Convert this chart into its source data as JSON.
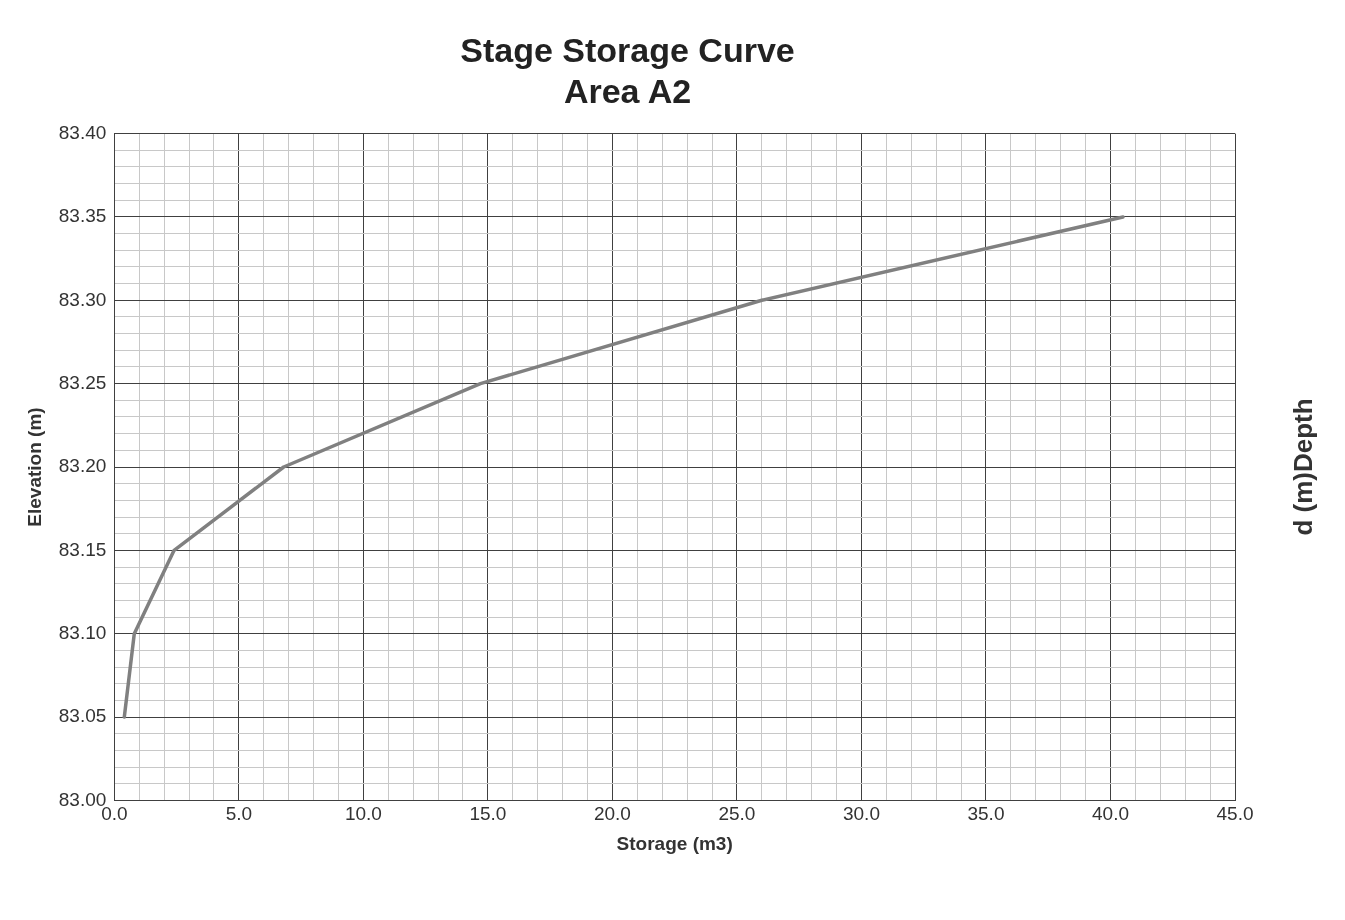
{
  "chart_data": {
    "type": "line",
    "title": [
      "Stage Storage Curve",
      "Area A2"
    ],
    "xlabel": "Storage (m3)",
    "ylabel": "Elevation (m)",
    "y2label": "d (m)Depth",
    "series": [
      {
        "color": "#808080",
        "x": [
          0.4,
          0.8,
          2.4,
          6.8,
          14.7,
          26.0,
          40.5
        ],
        "values": [
          83.05,
          83.1,
          83.15,
          83.2,
          83.25,
          83.3,
          83.35
        ]
      }
    ],
    "xlim": [
      0,
      45
    ],
    "ylim": [
      83.0,
      83.4
    ],
    "xticks": [
      {
        "value": 0,
        "label": "0.0"
      },
      {
        "value": 1,
        "label": null
      },
      {
        "value": 2,
        "label": null
      },
      {
        "value": 3,
        "label": null
      },
      {
        "value": 4,
        "label": null
      },
      {
        "value": 5,
        "label": "5.0"
      },
      {
        "value": 6,
        "label": null
      },
      {
        "value": 7,
        "label": null
      },
      {
        "value": 8,
        "label": null
      },
      {
        "value": 9,
        "label": null
      },
      {
        "value": 10,
        "label": "10.0"
      },
      {
        "value": 11,
        "label": null
      },
      {
        "value": 12,
        "label": null
      },
      {
        "value": 13,
        "label": null
      },
      {
        "value": 14,
        "label": null
      },
      {
        "value": 15,
        "label": "15.0"
      },
      {
        "value": 16,
        "label": null
      },
      {
        "value": 17,
        "label": null
      },
      {
        "value": 18,
        "label": null
      },
      {
        "value": 19,
        "label": null
      },
      {
        "value": 20,
        "label": "20.0"
      },
      {
        "value": 21,
        "label": null
      },
      {
        "value": 22,
        "label": null
      },
      {
        "value": 23,
        "label": null
      },
      {
        "value": 24,
        "label": null
      },
      {
        "value": 25,
        "label": "25.0"
      },
      {
        "value": 26,
        "label": null
      },
      {
        "value": 27,
        "label": null
      },
      {
        "value": 28,
        "label": null
      },
      {
        "value": 29,
        "label": null
      },
      {
        "value": 30,
        "label": "30.0"
      },
      {
        "value": 31,
        "label": null
      },
      {
        "value": 32,
        "label": null
      },
      {
        "value": 33,
        "label": null
      },
      {
        "value": 34,
        "label": null
      },
      {
        "value": 35,
        "label": "35.0"
      },
      {
        "value": 36,
        "label": null
      },
      {
        "value": 37,
        "label": null
      },
      {
        "value": 38,
        "label": null
      },
      {
        "value": 39,
        "label": null
      },
      {
        "value": 40,
        "label": "40.0"
      },
      {
        "value": 41,
        "label": null
      },
      {
        "value": 42,
        "label": null
      },
      {
        "value": 43,
        "label": null
      },
      {
        "value": 44,
        "label": null
      },
      {
        "value": 45,
        "label": "45.0"
      }
    ],
    "yticks": [
      {
        "value": 83.0,
        "label": "83.00"
      },
      {
        "value": 83.01,
        "label": null
      },
      {
        "value": 83.02,
        "label": null
      },
      {
        "value": 83.03,
        "label": null
      },
      {
        "value": 83.04,
        "label": null
      },
      {
        "value": 83.05,
        "label": "83.05"
      },
      {
        "value": 83.06,
        "label": null
      },
      {
        "value": 83.07,
        "label": null
      },
      {
        "value": 83.08,
        "label": null
      },
      {
        "value": 83.09,
        "label": null
      },
      {
        "value": 83.1,
        "label": "83.10"
      },
      {
        "value": 83.11,
        "label": null
      },
      {
        "value": 83.12,
        "label": null
      },
      {
        "value": 83.13,
        "label": null
      },
      {
        "value": 83.14,
        "label": null
      },
      {
        "value": 83.15,
        "label": "83.15"
      },
      {
        "value": 83.16,
        "label": null
      },
      {
        "value": 83.17,
        "label": null
      },
      {
        "value": 83.18,
        "label": null
      },
      {
        "value": 83.19,
        "label": null
      },
      {
        "value": 83.2,
        "label": "83.20"
      },
      {
        "value": 83.21,
        "label": null
      },
      {
        "value": 83.22,
        "label": null
      },
      {
        "value": 83.23,
        "label": null
      },
      {
        "value": 83.24,
        "label": null
      },
      {
        "value": 83.25,
        "label": "83.25"
      },
      {
        "value": 83.26,
        "label": null
      },
      {
        "value": 83.27,
        "label": null
      },
      {
        "value": 83.28,
        "label": null
      },
      {
        "value": 83.29,
        "label": null
      },
      {
        "value": 83.3,
        "label": "83.30"
      },
      {
        "value": 83.31,
        "label": null
      },
      {
        "value": 83.32,
        "label": null
      },
      {
        "value": 83.33,
        "label": null
      },
      {
        "value": 83.34,
        "label": null
      },
      {
        "value": 83.35,
        "label": "83.35"
      },
      {
        "value": 83.36,
        "label": null
      },
      {
        "value": 83.37,
        "label": null
      },
      {
        "value": 83.38,
        "label": null
      },
      {
        "value": 83.39,
        "label": null
      },
      {
        "value": 83.4,
        "label": "83.40"
      }
    ],
    "grid": true,
    "marker": "none",
    "line_style": "solid"
  }
}
